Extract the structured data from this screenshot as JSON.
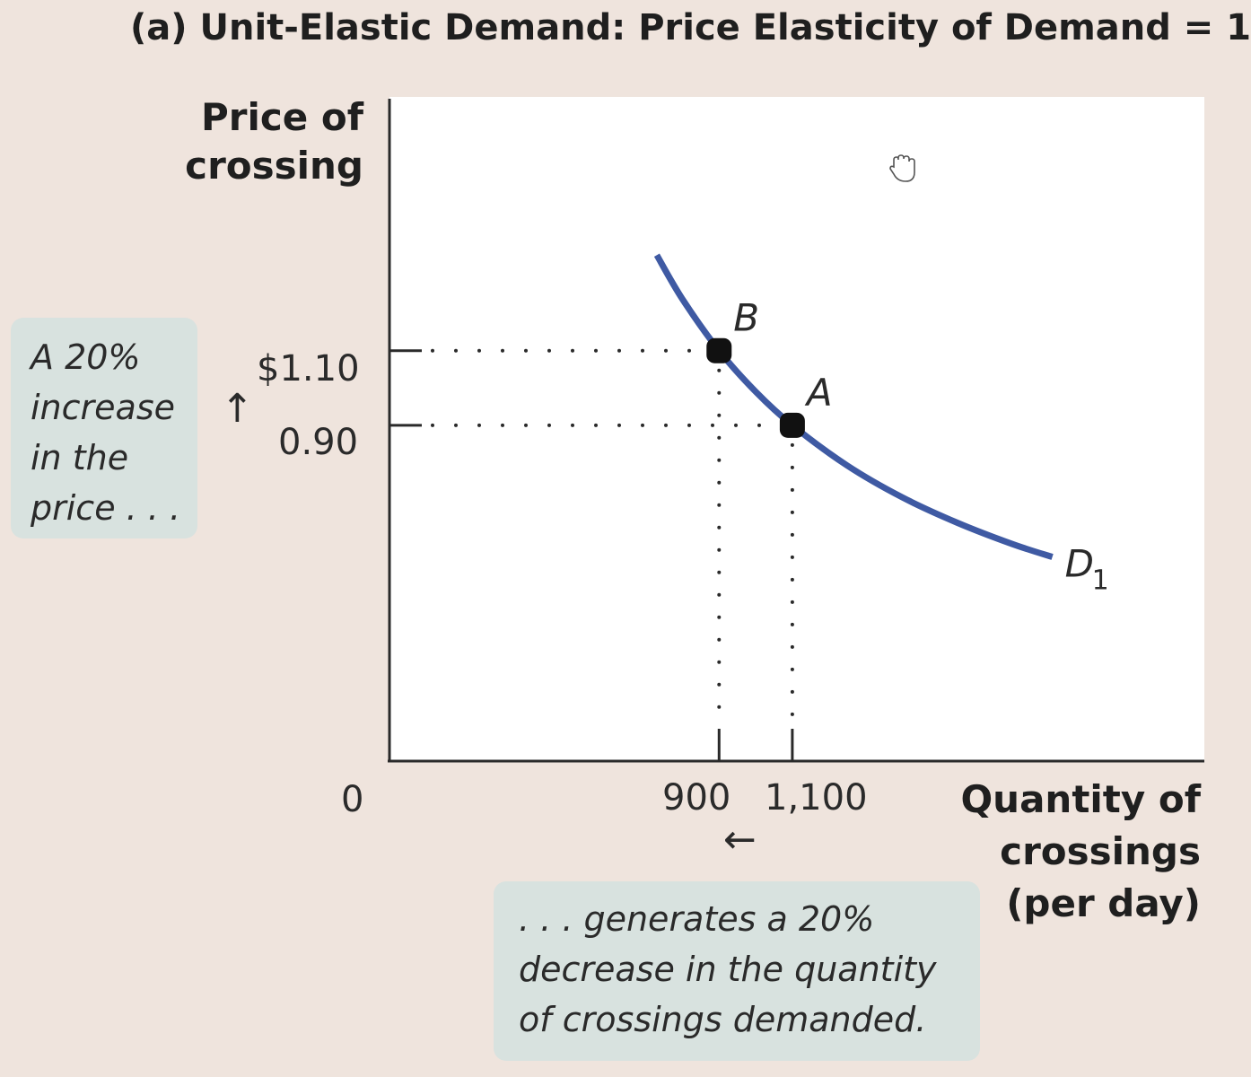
{
  "chart_data": {
    "type": "line",
    "title": "(a) Unit-Elastic Demand: Price Elasticity of Demand = 1",
    "ylabel": [
      "Price of",
      "crossing"
    ],
    "xlabel": [
      "Quantity of",
      "crossings",
      "(per day)"
    ],
    "origin_label": "0",
    "y_ticks": [
      {
        "label": "$1.10",
        "value": 1.1
      },
      {
        "label": "0.90",
        "value": 0.9
      }
    ],
    "x_ticks": [
      {
        "label": "900",
        "value": 900
      },
      {
        "label": "1,100",
        "value": 1100
      }
    ],
    "series": [
      {
        "name": "D1",
        "color": "#3f5aa3",
        "x": [
          730,
          800,
          900,
          1000,
          1100,
          1250,
          1400,
          1550,
          1700,
          1810
        ],
        "y": [
          1.356,
          1.238,
          1.1,
          0.99,
          0.9,
          0.792,
          0.707,
          0.639,
          0.582,
          0.547
        ]
      }
    ],
    "points": [
      {
        "label": "B",
        "x": 900,
        "y": 1.1
      },
      {
        "label": "A",
        "x": 1100,
        "y": 0.9
      }
    ],
    "curve_label": {
      "main": "D",
      "sub": "1"
    },
    "xlim": [
      0,
      2225
    ],
    "ylim": [
      0,
      1.78
    ],
    "grid": false
  },
  "annotations": {
    "left_callout": [
      "A 20%",
      "increase",
      "in the",
      "price . . ."
    ],
    "bottom_callout": [
      ". . . generates a 20%",
      "decrease in the quantity",
      "of crossings demanded."
    ],
    "up_arrow": "↑",
    "left_arrow": "←"
  },
  "colors": {
    "background": "#efe4dd",
    "plot_background": "#ffffff",
    "curve": "#3f5aa3",
    "callout": "#d8e2df"
  },
  "icons": {
    "cursor": "hand-cursor-icon"
  }
}
